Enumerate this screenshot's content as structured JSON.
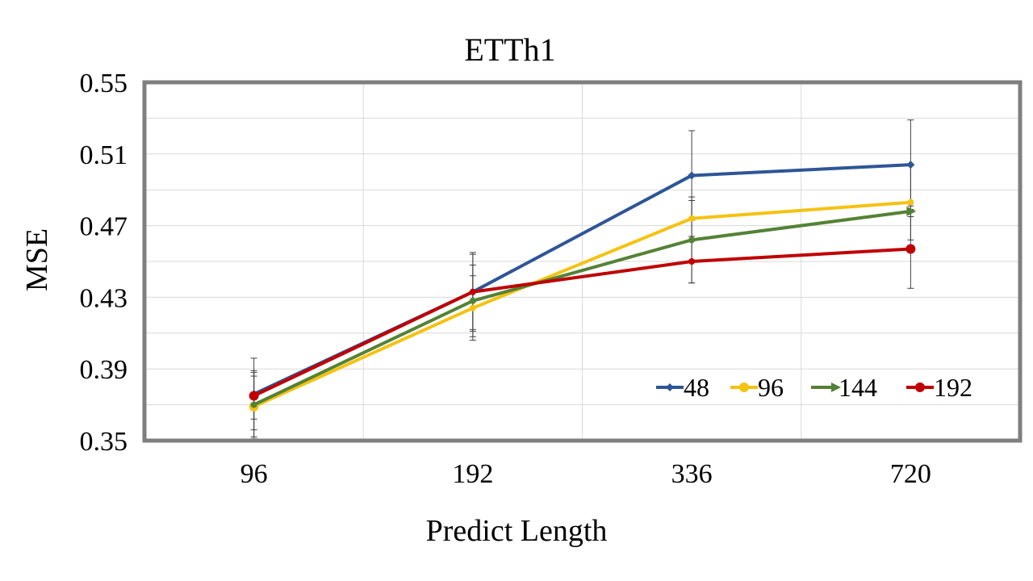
{
  "chart_data": {
    "type": "line",
    "title": "ETTh1",
    "xlabel": "Predict Length",
    "ylabel": "MSE",
    "categories": [
      "96",
      "192",
      "336",
      "720"
    ],
    "ylim": [
      0.35,
      0.55
    ],
    "yticks": [
      0.35,
      0.39,
      0.43,
      0.47,
      0.51,
      0.55
    ],
    "ytick_labels": [
      "0.35",
      "0.39",
      "0.43",
      "0.47",
      "0.51",
      "0.55"
    ],
    "grid": true,
    "legend_position": "bottom-right",
    "series": [
      {
        "name": "48",
        "color": "#2E5597",
        "marker": "diamond",
        "values": [
          0.376,
          0.433,
          0.498,
          0.504
        ],
        "errors": [
          0.02,
          0.022,
          0.025,
          0.025
        ]
      },
      {
        "name": "96",
        "color": "#F5C212",
        "marker": "circle",
        "values": [
          0.369,
          0.424,
          0.474,
          0.483
        ],
        "errors": [
          0.017,
          0.018,
          0.01,
          0.021
        ]
      },
      {
        "name": "144",
        "color": "#548235",
        "marker": "arrow",
        "values": [
          0.37,
          0.428,
          0.462,
          0.478
        ],
        "errors": [
          0.019,
          0.02,
          0.024,
          0.003
        ]
      },
      {
        "name": "192",
        "color": "#C00000",
        "marker": "circle",
        "values": [
          0.375,
          0.433,
          0.45,
          0.457
        ],
        "errors": [
          0.013,
          0.021,
          0.012,
          0.022
        ]
      }
    ]
  }
}
